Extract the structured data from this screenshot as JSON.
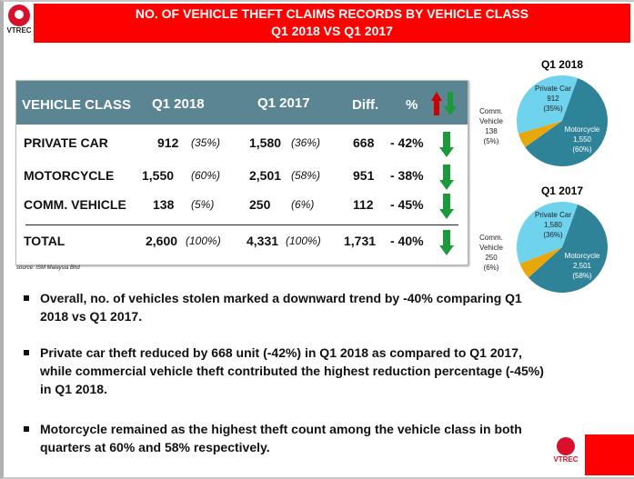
{
  "header": {
    "title_line1": "NO. OF VEHICLE THEFT CLAIMS RECORDS BY VEHICLE CLASS",
    "title_line2": "Q1 2018 VS Q1 2017",
    "logo_text": "VTREC"
  },
  "table": {
    "headers": [
      "VEHICLE CLASS",
      "Q1 2018",
      "Q1 2017",
      "Diff.",
      "%"
    ],
    "rows": [
      {
        "cls": "PRIVATE CAR",
        "q18": "912",
        "q18p": "(35%)",
        "q17": "1,580",
        "q17p": "(36%)",
        "diff": "668",
        "pct": "- 42%"
      },
      {
        "cls": "MOTORCYCLE",
        "q18": "1,550",
        "q18p": "(60%)",
        "q17": "2,501",
        "q17p": "(58%)",
        "diff": "951",
        "pct": "- 38%"
      },
      {
        "cls": "COMM. VEHICLE",
        "q18": "138",
        "q18p": "(5%)",
        "q17": "250",
        "q17p": "(6%)",
        "diff": "112",
        "pct": "- 45%"
      }
    ],
    "total": {
      "cls": "TOTAL",
      "q18": "2,600",
      "q18p": "(100%)",
      "q17": "4,331",
      "q17p": "(100%)",
      "diff": "1,731",
      "pct": "- 40%"
    },
    "source": "source:  ISM  Malaysia Bhd"
  },
  "bullets": [
    "Overall, no. of vehicles stolen marked a downward trend by -40% comparing Q1 2018 vs Q1 2017.",
    "Private car theft reduced by 668 unit (-42%) in Q1 2018 as compared to Q1 2017, while commercial vehicle theft contributed the highest reduction percentage  (-45%) in Q1 2018.",
    "Motorcycle remained as the highest theft count among the vehicle class in both quarters at 60% and 58% respectively."
  ],
  "chart_data": [
    {
      "type": "pie",
      "title": "Q1 2018",
      "labels": [
        "Motorcycle",
        "Comm. Vehicle",
        "Private Car"
      ],
      "values": [
        1550,
        138,
        912
      ],
      "label_values": [
        "1,550",
        "138",
        "912"
      ],
      "percents": [
        "(60%)",
        "(5%)",
        "(35%)"
      ],
      "colors": [
        "#2e8399",
        "#e8a80c",
        "#6fd3ee"
      ]
    },
    {
      "type": "pie",
      "title": "Q1 2017",
      "labels": [
        "Motorcycle",
        "Comm. Vehicle",
        "Private Car"
      ],
      "values": [
        2501,
        250,
        1580
      ],
      "label_values": [
        "2,501",
        "250",
        "1,580"
      ],
      "percents": [
        "(58%)",
        "(6%)",
        "(36%)"
      ],
      "colors": [
        "#2e8399",
        "#e8a80c",
        "#6fd3ee"
      ]
    }
  ],
  "colors": {
    "header_red": "#ff0000",
    "table_header": "#5b8592",
    "down_arrow": "#1a9a3a",
    "up_arrow": "#cc0000"
  }
}
